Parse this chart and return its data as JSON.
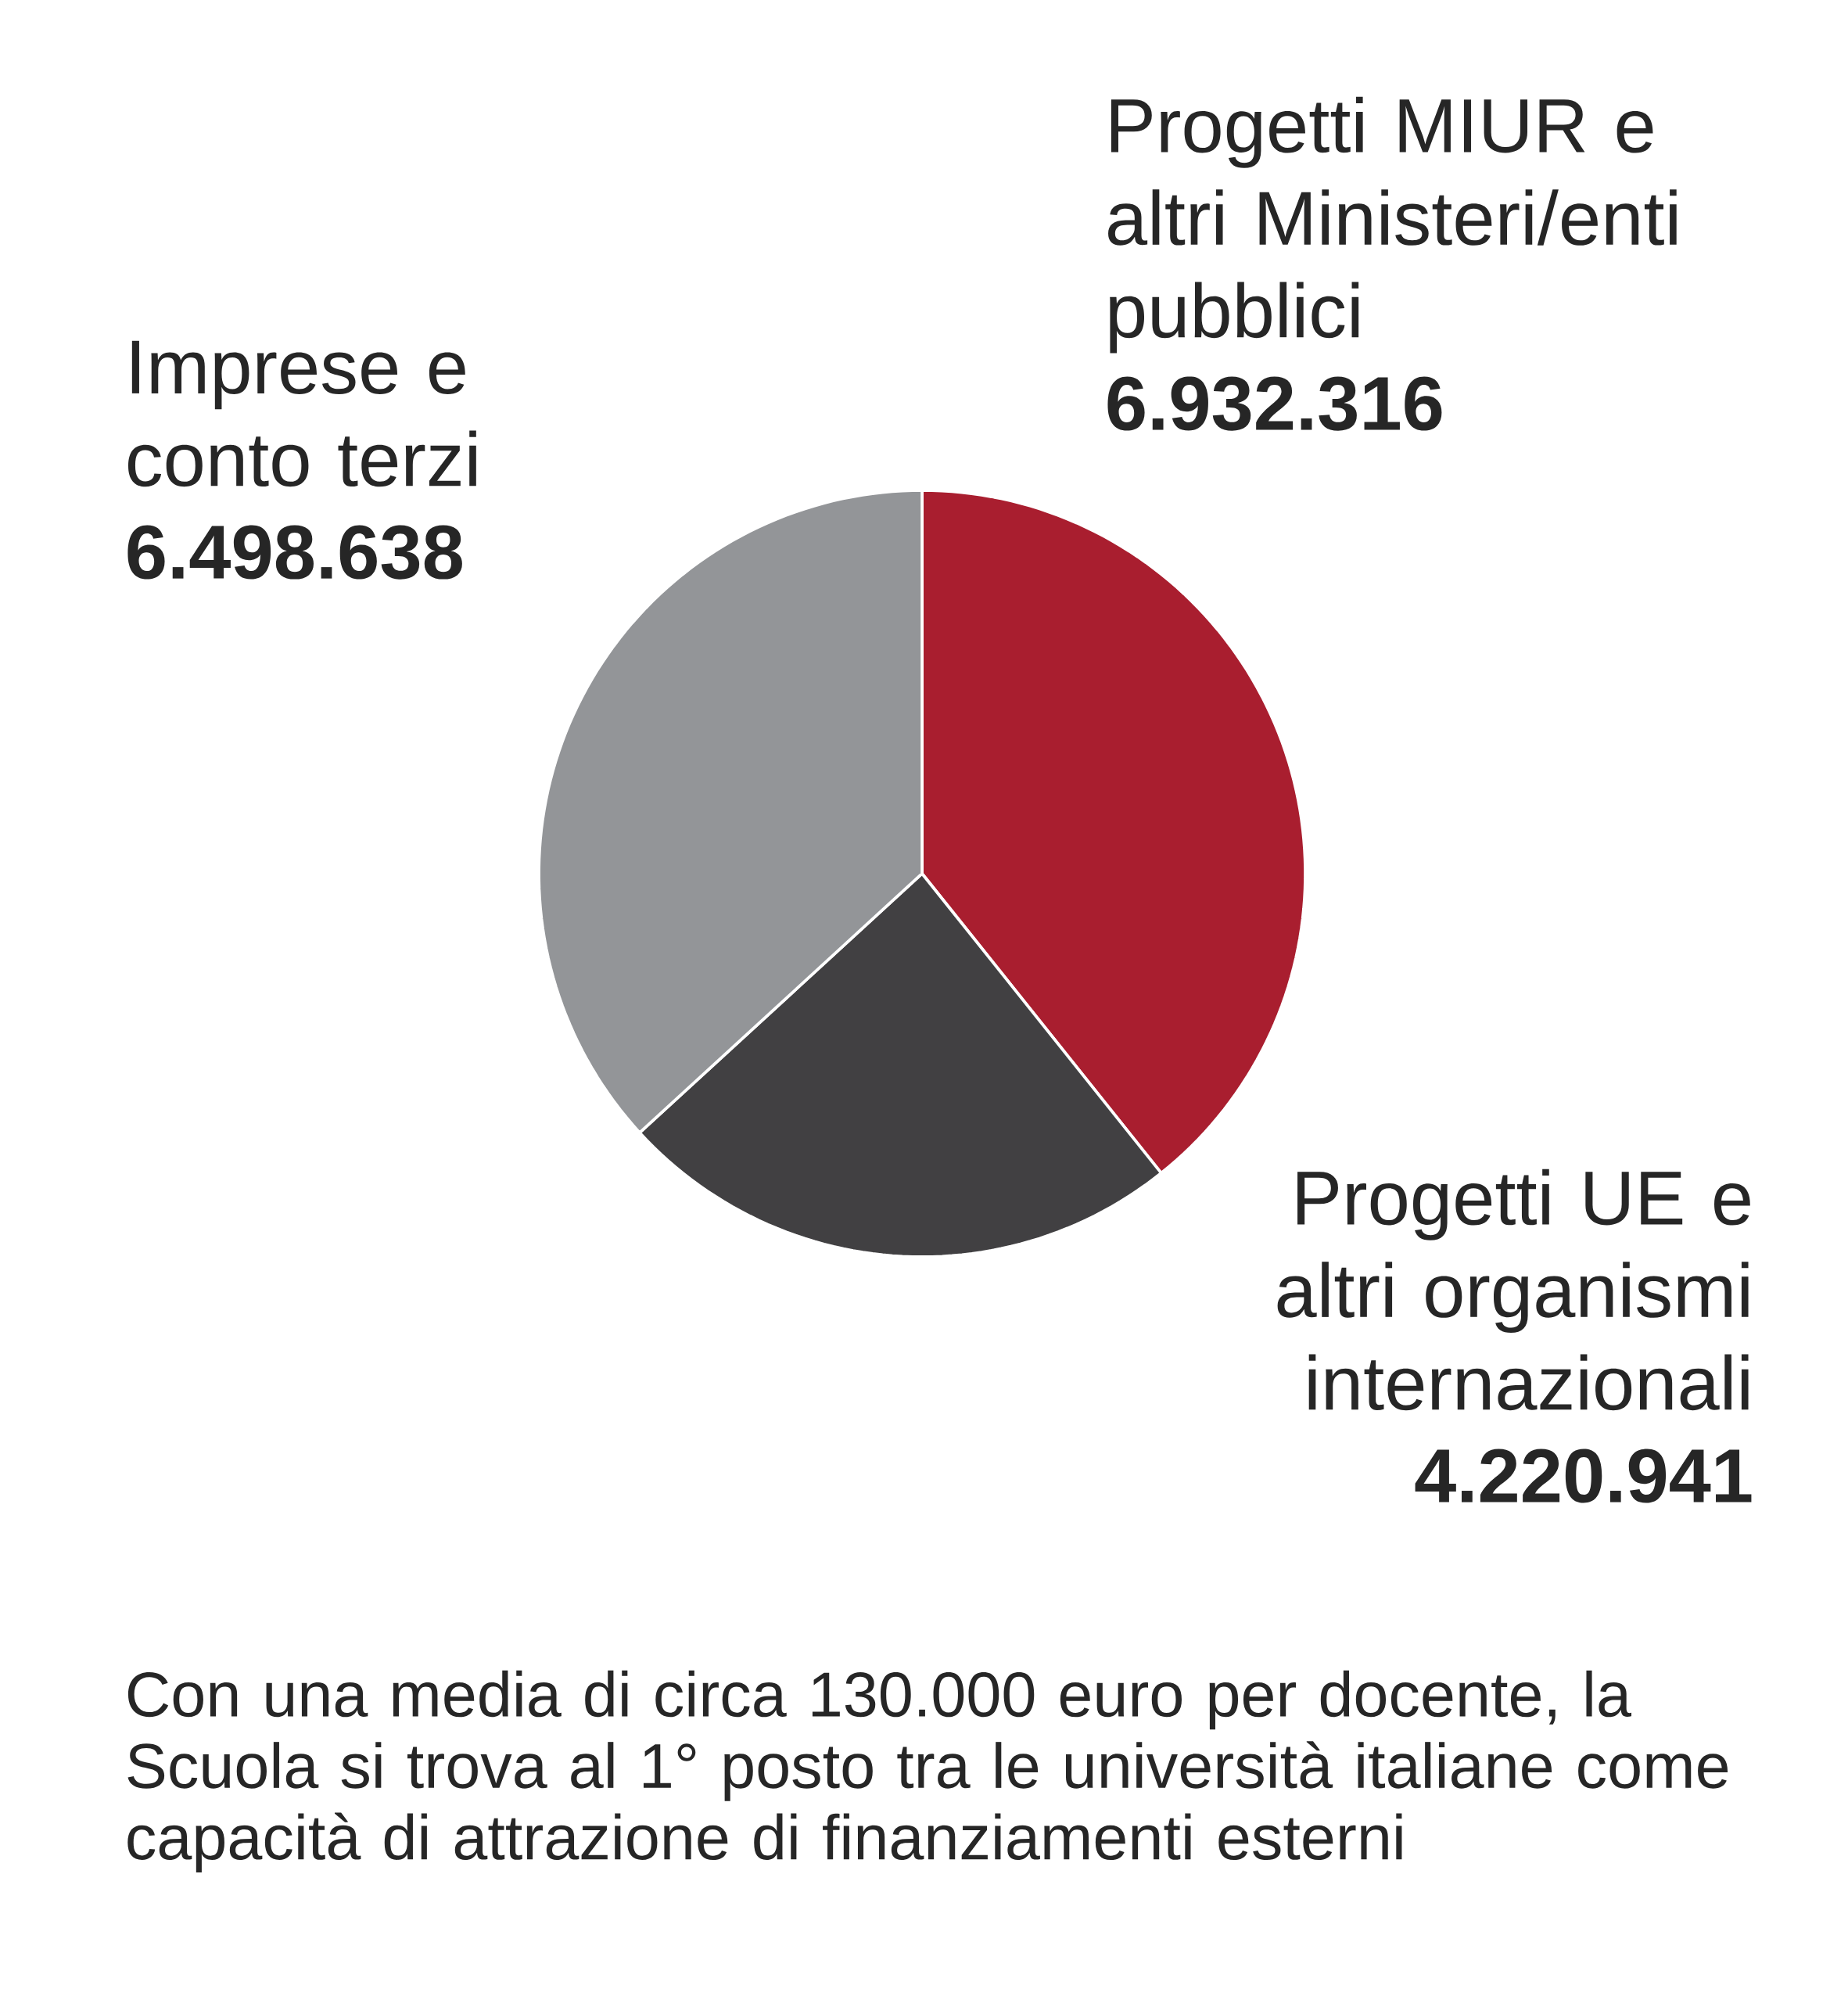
{
  "chart_data": {
    "type": "pie",
    "categories": [
      "Progetti MIUR e altri Ministeri/enti pubblici",
      "Progetti UE e altri organismi internazionali",
      "Imprese e conto terzi"
    ],
    "values": [
      6932316,
      4220941,
      6498638
    ],
    "value_labels": [
      "6.932.316",
      "4.220.941",
      "6.498.638"
    ],
    "colors": [
      "#a91e2f",
      "#414042",
      "#939598"
    ],
    "annotations": [
      "Con una media di circa 130.000 euro per docente, la Scuola si trova al 1° posto tra le università italiane come capacità di attrazione di finanziamenti esterni"
    ]
  }
}
